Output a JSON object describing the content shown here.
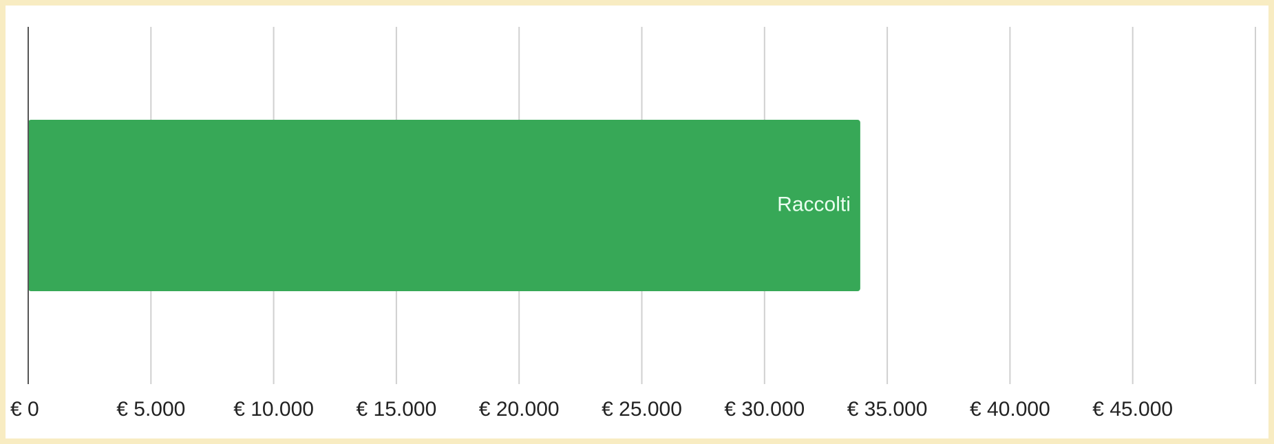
{
  "chart_data": {
    "type": "bar",
    "orientation": "horizontal",
    "categories": [
      "Raccolti"
    ],
    "values": [
      33900
    ],
    "color": "#37a857",
    "xlim": [
      0,
      50000
    ],
    "xticks": [
      {
        "value": 0,
        "label": "€ 0"
      },
      {
        "value": 5000,
        "label": "€ 5.000"
      },
      {
        "value": 10000,
        "label": "€ 10.000"
      },
      {
        "value": 15000,
        "label": "€ 15.000"
      },
      {
        "value": 20000,
        "label": "€ 20.000"
      },
      {
        "value": 25000,
        "label": "€ 25.000"
      },
      {
        "value": 30000,
        "label": "€ 30.000"
      },
      {
        "value": 35000,
        "label": "€ 35.000"
      },
      {
        "value": 40000,
        "label": "€ 40.000"
      },
      {
        "value": 45000,
        "label": "€ 45.000"
      }
    ],
    "grid": true
  }
}
